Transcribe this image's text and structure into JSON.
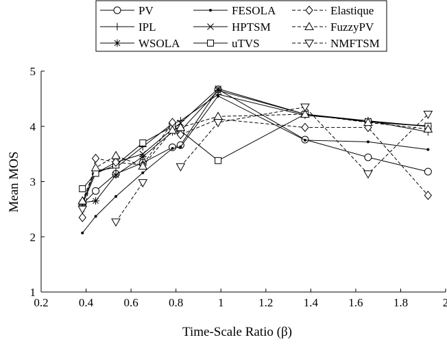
{
  "chart_data": {
    "type": "line",
    "title": "",
    "xlabel": "Time-Scale Ratio (β)",
    "ylabel": "Mean MOS",
    "xlim": [
      0.2,
      2
    ],
    "ylim": [
      1,
      5
    ],
    "x_ticks": [
      "0.2",
      "0.4",
      "0.6",
      "0.8",
      "1",
      "1.2",
      "1.4",
      "1.6",
      "1.8",
      "2"
    ],
    "y_ticks": [
      "1",
      "2",
      "3",
      "4",
      "5"
    ],
    "grid": false,
    "legend": {
      "placement": "top-center",
      "columns": 3
    },
    "x": [
      0.3838,
      0.4427,
      0.5326,
      0.6524,
      0.7843,
      0.8205,
      0.9875,
      1.3744,
      1.6549,
      1.9217
    ],
    "series": [
      {
        "name": "PV",
        "marker": "circle",
        "dash": false,
        "values": [
          2.59,
          2.83,
          3.14,
          3.34,
          3.62,
          3.66,
          4.67,
          3.76,
          3.44,
          3.18
        ]
      },
      {
        "name": "IPL",
        "marker": "plus",
        "dash": false,
        "values": [
          2.62,
          3.2,
          3.25,
          3.63,
          4.05,
          4.1,
          4.58,
          4.2,
          4.1,
          3.9
        ]
      },
      {
        "name": "WSOLA",
        "marker": "asterisk",
        "dash": false,
        "values": [
          2.62,
          2.65,
          3.12,
          3.45,
          3.9,
          3.92,
          4.65,
          4.22,
          4.1,
          4.0
        ]
      },
      {
        "name": "FESOLA",
        "marker": "dot",
        "dash": false,
        "values": [
          2.07,
          2.37,
          2.73,
          3.16,
          3.6,
          3.63,
          4.55,
          3.75,
          3.72,
          3.58
        ]
      },
      {
        "name": "HPTSM",
        "marker": "x",
        "dash": false,
        "values": [
          2.59,
          3.15,
          3.35,
          3.5,
          3.95,
          4.06,
          4.68,
          4.22,
          4.08,
          4.01
        ]
      },
      {
        "name": "uTVS",
        "marker": "square",
        "dash": false,
        "values": [
          2.87,
          3.15,
          3.3,
          3.7,
          4.0,
          3.92,
          3.38,
          4.22,
          4.08,
          4.0
        ]
      },
      {
        "name": "Elastique",
        "marker": "diamond",
        "dash": true,
        "values": [
          2.35,
          3.42,
          3.35,
          3.3,
          4.07,
          3.85,
          4.13,
          3.98,
          3.98,
          2.75
        ]
      },
      {
        "name": "FuzzyPV",
        "marker": "triangle-up",
        "dash": true,
        "values": [
          2.65,
          3.25,
          3.47,
          3.28,
          3.93,
          3.98,
          4.18,
          4.22,
          4.07,
          3.95
        ]
      },
      {
        "name": "NMFTSM",
        "marker": "triangle-down",
        "dash": true,
        "values": [
          2.5,
          null,
          2.27,
          2.98,
          null,
          3.27,
          4.07,
          4.35,
          3.14,
          4.22
        ]
      }
    ]
  }
}
